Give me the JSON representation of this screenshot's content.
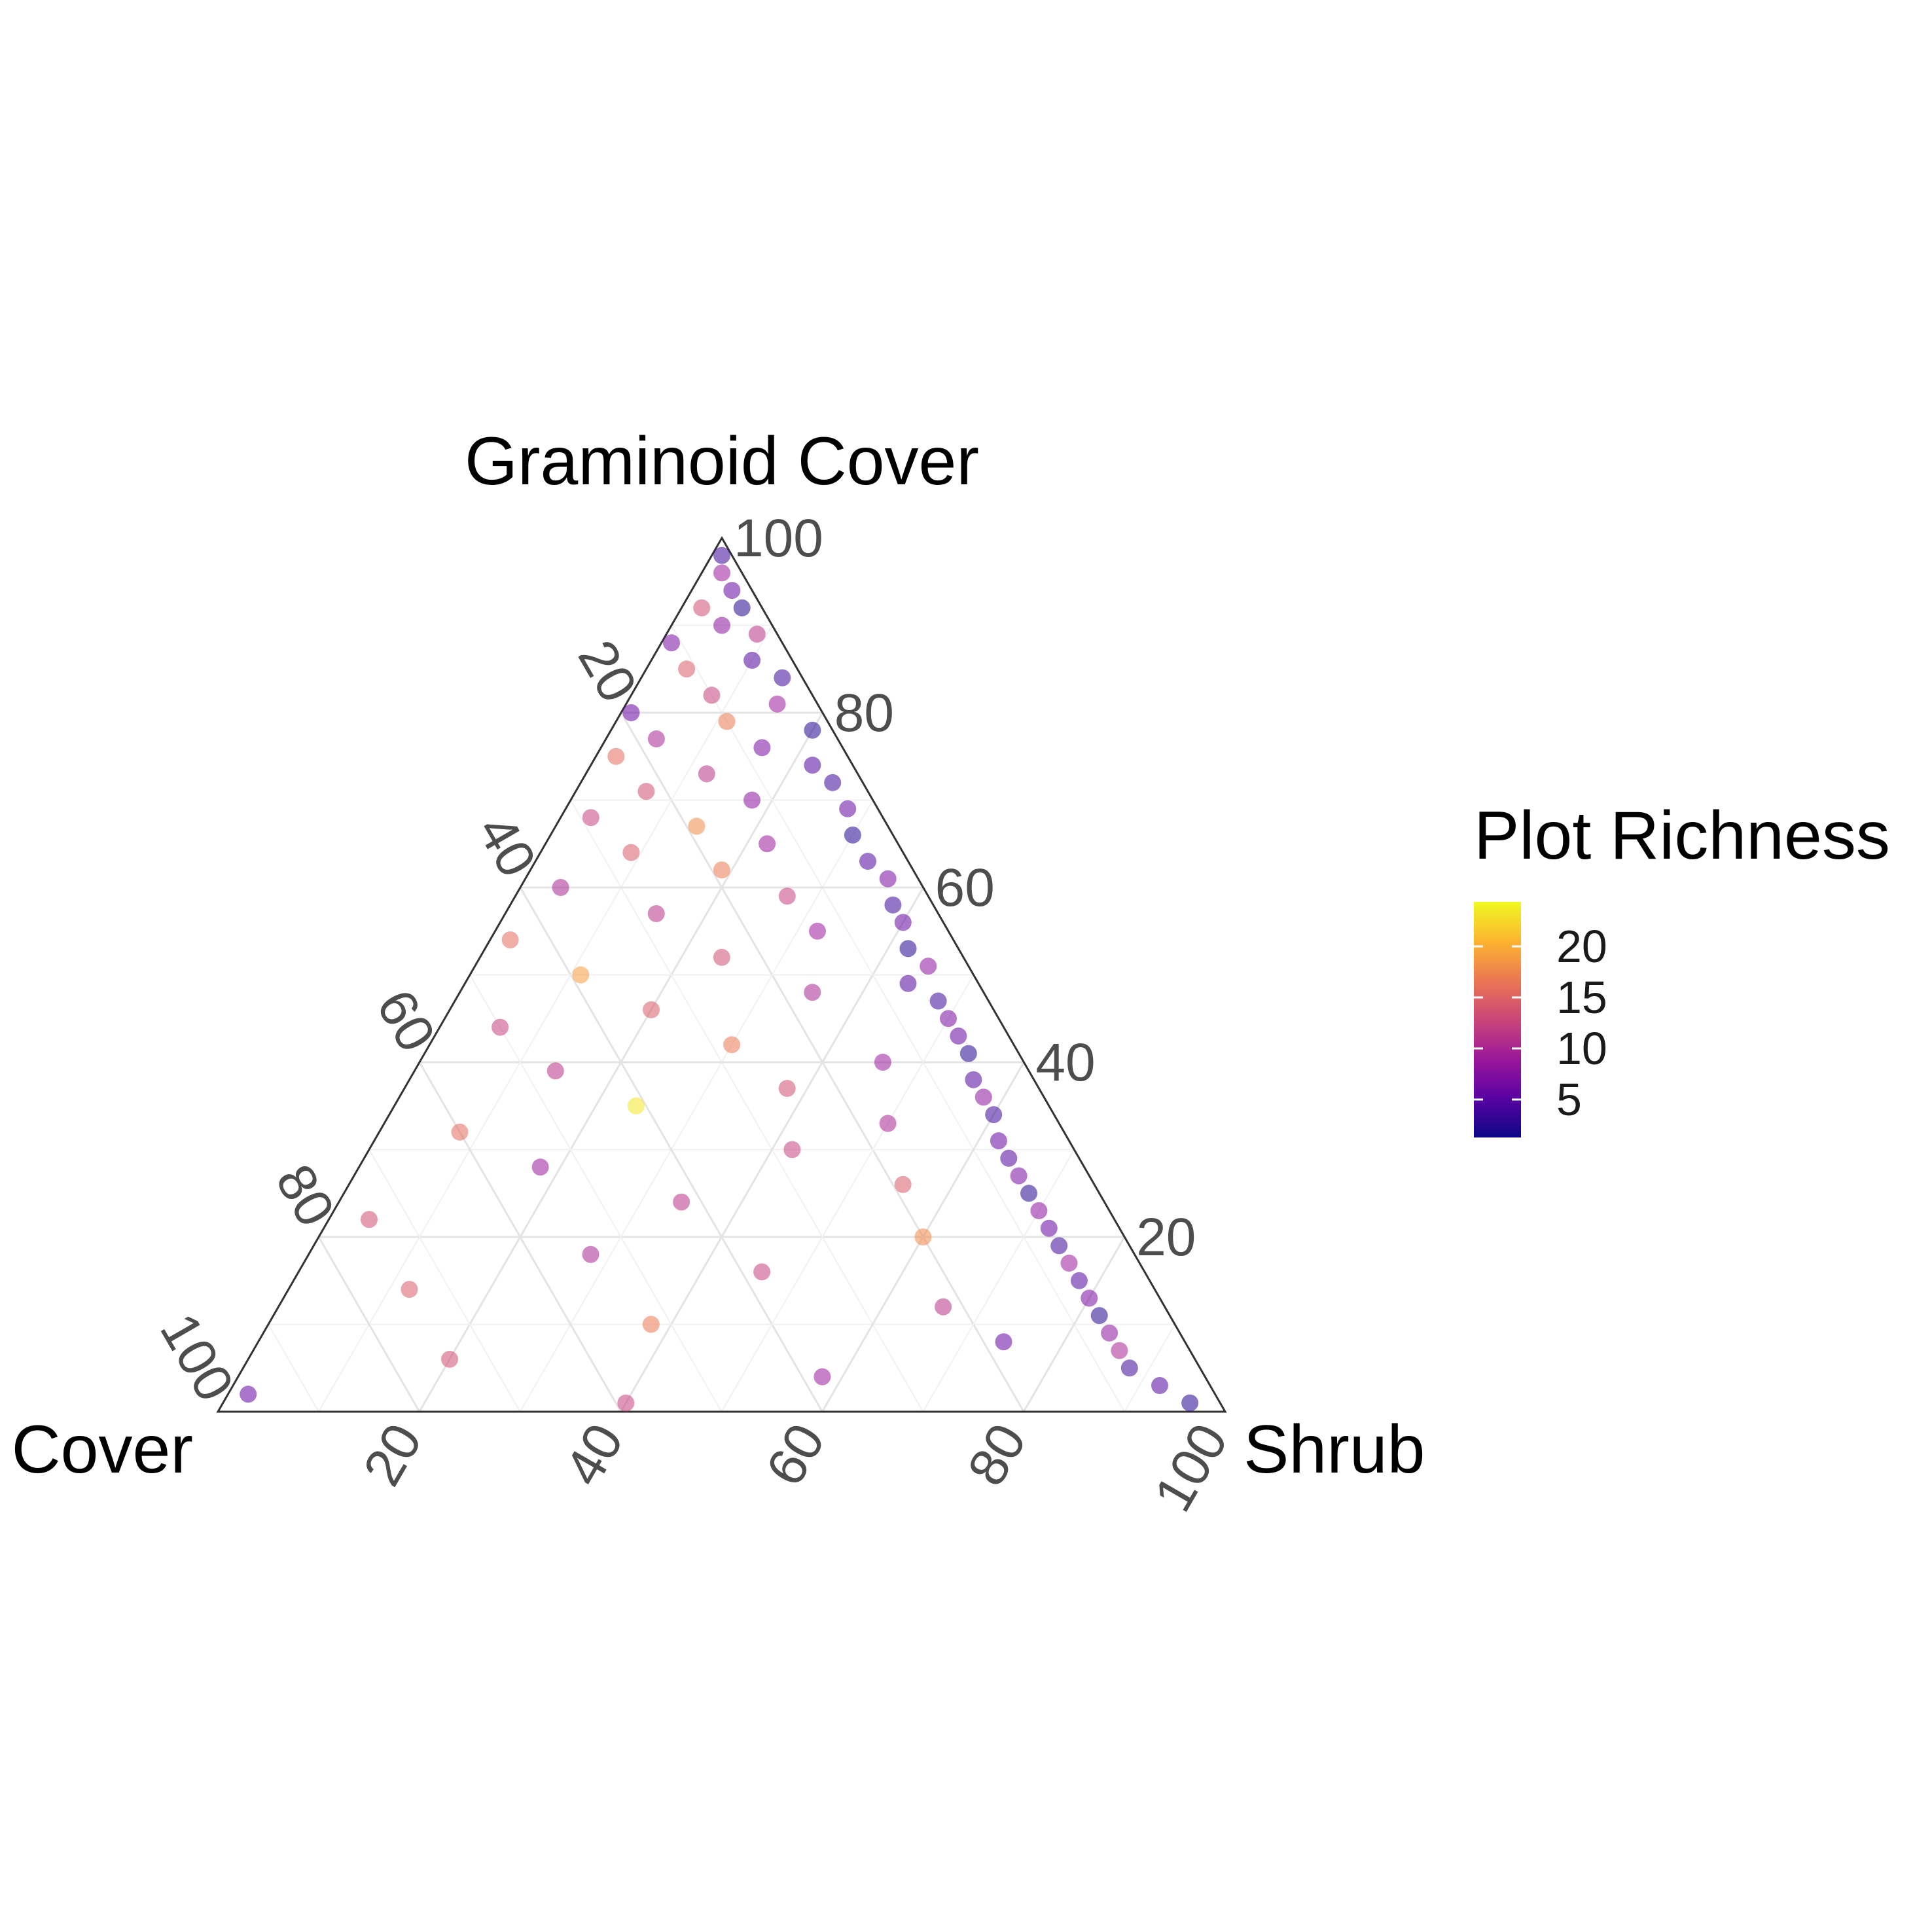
{
  "chart_data": {
    "type": "scatter",
    "subtype": "ternary",
    "axes": {
      "top": {
        "label": "Graminoid Cover",
        "ticks": [
          "20",
          "40",
          "60",
          "80",
          "100"
        ]
      },
      "left": {
        "label": "Cover",
        "ticks": [
          "20",
          "40",
          "60",
          "80",
          "100"
        ]
      },
      "right": {
        "label": "Shrub",
        "ticks": [
          "20",
          "40",
          "60",
          "80",
          "100"
        ]
      }
    },
    "range": [
      0,
      100
    ],
    "grid": true,
    "color_scale": {
      "name": "Plot Richness",
      "palette": "plasma",
      "min": 2,
      "max": 23,
      "ticks": [
        5,
        10,
        15,
        20
      ],
      "colors": [
        "#0d0887",
        "#5b02a3",
        "#9a179b",
        "#cb4678",
        "#eb7852",
        "#fbb32f",
        "#f0f921"
      ]
    },
    "legend_position": "right",
    "point_alpha": 0.55,
    "points": [
      {
        "g": 98,
        "s": 1,
        "r": 4
      },
      {
        "g": 96,
        "s": 2,
        "r": 9
      },
      {
        "g": 94,
        "s": 4,
        "r": 6
      },
      {
        "g": 92,
        "s": 2,
        "r": 13
      },
      {
        "g": 92,
        "s": 6,
        "r": 3
      },
      {
        "g": 90,
        "s": 5,
        "r": 8
      },
      {
        "g": 89,
        "s": 9,
        "r": 11
      },
      {
        "g": 88,
        "s": 1,
        "r": 7
      },
      {
        "g": 86,
        "s": 10,
        "r": 5
      },
      {
        "g": 85,
        "s": 4,
        "r": 14
      },
      {
        "g": 84,
        "s": 14,
        "r": 4
      },
      {
        "g": 82,
        "s": 8,
        "r": 12
      },
      {
        "g": 81,
        "s": 15,
        "r": 9
      },
      {
        "g": 80,
        "s": 1,
        "r": 6
      },
      {
        "g": 79,
        "s": 11,
        "r": 16
      },
      {
        "g": 78,
        "s": 20,
        "r": 3
      },
      {
        "g": 77,
        "s": 5,
        "r": 10
      },
      {
        "g": 76,
        "s": 16,
        "r": 7
      },
      {
        "g": 75,
        "s": 2,
        "r": 15
      },
      {
        "g": 74,
        "s": 22,
        "r": 5
      },
      {
        "g": 73,
        "s": 12,
        "r": 11
      },
      {
        "g": 72,
        "s": 25,
        "r": 4
      },
      {
        "g": 71,
        "s": 7,
        "r": 13
      },
      {
        "g": 70,
        "s": 18,
        "r": 8
      },
      {
        "g": 69,
        "s": 28,
        "r": 6
      },
      {
        "g": 68,
        "s": 3,
        "r": 12
      },
      {
        "g": 67,
        "s": 14,
        "r": 17
      },
      {
        "g": 66,
        "s": 30,
        "r": 3
      },
      {
        "g": 65,
        "s": 22,
        "r": 9
      },
      {
        "g": 64,
        "s": 9,
        "r": 14
      },
      {
        "g": 63,
        "s": 33,
        "r": 5
      },
      {
        "g": 62,
        "s": 19,
        "r": 16
      },
      {
        "g": 61,
        "s": 36,
        "r": 7
      },
      {
        "g": 60,
        "s": 4,
        "r": 10
      },
      {
        "g": 59,
        "s": 27,
        "r": 12
      },
      {
        "g": 58,
        "s": 38,
        "r": 4
      },
      {
        "g": 57,
        "s": 15,
        "r": 11
      },
      {
        "g": 56,
        "s": 40,
        "r": 6
      },
      {
        "g": 55,
        "s": 32,
        "r": 9
      },
      {
        "g": 54,
        "s": 2,
        "r": 15
      },
      {
        "g": 53,
        "s": 42,
        "r": 3
      },
      {
        "g": 52,
        "s": 24,
        "r": 13
      },
      {
        "g": 51,
        "s": 45,
        "r": 8
      },
      {
        "g": 50,
        "s": 11,
        "r": 18
      },
      {
        "g": 49,
        "s": 44,
        "r": 5
      },
      {
        "g": 48,
        "s": 35,
        "r": 10
      },
      {
        "g": 47,
        "s": 48,
        "r": 4
      },
      {
        "g": 46,
        "s": 20,
        "r": 14
      },
      {
        "g": 45,
        "s": 50,
        "r": 7
      },
      {
        "g": 44,
        "s": 6,
        "r": 12
      },
      {
        "g": 43,
        "s": 52,
        "r": 6
      },
      {
        "g": 42,
        "s": 30,
        "r": 16
      },
      {
        "g": 41,
        "s": 54,
        "r": 3
      },
      {
        "g": 40,
        "s": 46,
        "r": 9
      },
      {
        "g": 39,
        "s": 14,
        "r": 11
      },
      {
        "g": 38,
        "s": 56,
        "r": 5
      },
      {
        "g": 37,
        "s": 38,
        "r": 13
      },
      {
        "g": 36,
        "s": 58,
        "r": 8
      },
      {
        "g": 35,
        "s": 24,
        "r": 22
      },
      {
        "g": 34,
        "s": 60,
        "r": 4
      },
      {
        "g": 33,
        "s": 50,
        "r": 10
      },
      {
        "g": 32,
        "s": 8,
        "r": 15
      },
      {
        "g": 31,
        "s": 62,
        "r": 6
      },
      {
        "g": 30,
        "s": 42,
        "r": 12
      },
      {
        "g": 29,
        "s": 64,
        "r": 5
      },
      {
        "g": 28,
        "s": 18,
        "r": 9
      },
      {
        "g": 27,
        "s": 66,
        "r": 7
      },
      {
        "g": 26,
        "s": 55,
        "r": 14
      },
      {
        "g": 25,
        "s": 68,
        "r": 3
      },
      {
        "g": 24,
        "s": 34,
        "r": 11
      },
      {
        "g": 23,
        "s": 70,
        "r": 8
      },
      {
        "g": 22,
        "s": 4,
        "r": 13
      },
      {
        "g": 21,
        "s": 72,
        "r": 6
      },
      {
        "g": 20,
        "s": 60,
        "r": 17
      },
      {
        "g": 19,
        "s": 74,
        "r": 4
      },
      {
        "g": 18,
        "s": 28,
        "r": 10
      },
      {
        "g": 17,
        "s": 76,
        "r": 9
      },
      {
        "g": 16,
        "s": 46,
        "r": 12
      },
      {
        "g": 15,
        "s": 78,
        "r": 5
      },
      {
        "g": 14,
        "s": 12,
        "r": 14
      },
      {
        "g": 13,
        "s": 80,
        "r": 7
      },
      {
        "g": 12,
        "s": 66,
        "r": 11
      },
      {
        "g": 11,
        "s": 82,
        "r": 3
      },
      {
        "g": 10,
        "s": 38,
        "r": 16
      },
      {
        "g": 9,
        "s": 84,
        "r": 8
      },
      {
        "g": 8,
        "s": 74,
        "r": 6
      },
      {
        "g": 7,
        "s": 86,
        "r": 10
      },
      {
        "g": 6,
        "s": 20,
        "r": 13
      },
      {
        "g": 5,
        "s": 88,
        "r": 4
      },
      {
        "g": 4,
        "s": 58,
        "r": 9
      },
      {
        "g": 3,
        "s": 92,
        "r": 5
      },
      {
        "g": 2,
        "s": 2,
        "r": 6
      },
      {
        "g": 1,
        "s": 96,
        "r": 3
      },
      {
        "g": 1,
        "s": 40,
        "r": 12
      }
    ]
  },
  "legend": {
    "title": "Plot Richness",
    "labels": [
      "20",
      "15",
      "10",
      "5"
    ]
  }
}
